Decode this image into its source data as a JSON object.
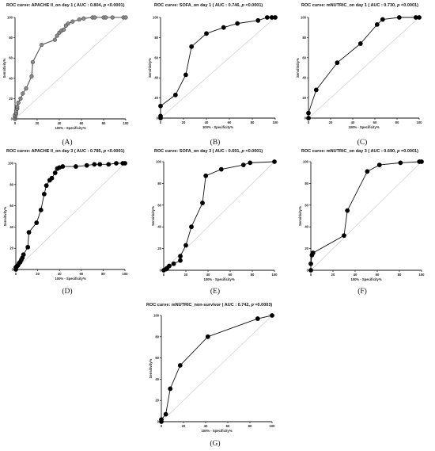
{
  "chart_data": [
    {
      "type": "line",
      "title": "ROC curve: APACHE II_on day 1 ( AUC : 0.804, ",
      "title_p": "p",
      "title_tail": " <0.0001)",
      "xlabel": "100% - Specificity%",
      "ylabel": "Sensitivity%",
      "xlim": [
        0,
        100
      ],
      "ylim": [
        0,
        100
      ],
      "xticks": [
        "0",
        "20",
        "40",
        "60",
        "80",
        "100"
      ],
      "yticks": [
        "0",
        "20",
        "40",
        "60",
        "80",
        "100"
      ],
      "panel_label": "(A)",
      "reference_line": true,
      "marker": "small-gray",
      "x": [
        0,
        0,
        0,
        0,
        0,
        1,
        1,
        1,
        2,
        2,
        3,
        5,
        7,
        10,
        15,
        16,
        24,
        36,
        38,
        40,
        42,
        44,
        46,
        48,
        52,
        58,
        62,
        70,
        72,
        80,
        82,
        88,
        98,
        100
      ],
      "y": [
        0,
        1,
        2,
        3,
        4,
        5,
        6,
        8,
        10,
        12,
        16,
        20,
        25,
        30,
        42,
        56,
        73,
        78,
        82,
        85,
        87,
        88,
        92,
        94,
        96,
        98,
        99,
        100,
        100,
        100,
        100,
        100,
        100,
        100
      ]
    },
    {
      "type": "line",
      "title": "ROC curve: SOFA_on day 1 ( AUC : 0.746, ",
      "title_p": "p",
      "title_tail": " <0.0001)",
      "xlabel": "100% - Specificity%",
      "ylabel": "Sensitivity%",
      "xlim": [
        0,
        100
      ],
      "ylim": [
        0,
        100
      ],
      "xticks": [
        "0",
        "20",
        "40",
        "60",
        "80",
        "100"
      ],
      "yticks": [
        "0",
        "20",
        "40",
        "60",
        "80",
        "100"
      ],
      "panel_label": "(B)",
      "reference_line": true,
      "marker": "large-black",
      "x": [
        0,
        0,
        0,
        13,
        22,
        27,
        40,
        55,
        67,
        85,
        93,
        97,
        100
      ],
      "y": [
        0,
        2,
        12,
        23,
        43,
        71,
        84,
        90,
        94,
        97,
        100,
        100,
        100
      ]
    },
    {
      "type": "line",
      "title": "ROC curve: mNUTRIC_on day 1 ( AUC : 0.730, ",
      "title_p": "p",
      "title_tail": " <0.0001)",
      "xlabel": "100% - Specificity%",
      "ylabel": "Sensitivity%",
      "xlim": [
        0,
        100
      ],
      "ylim": [
        0,
        100
      ],
      "xticks": [
        "0",
        "20",
        "40",
        "60",
        "80",
        "100"
      ],
      "yticks": [
        "0",
        "20",
        "40",
        "60",
        "80",
        "100"
      ],
      "panel_label": "(C)",
      "reference_line": true,
      "marker": "large-black",
      "x": [
        0,
        0,
        7,
        26,
        47,
        62,
        67,
        82,
        97,
        100
      ],
      "y": [
        0,
        5,
        28,
        55,
        74,
        93,
        98,
        100,
        100,
        100
      ]
    },
    {
      "type": "line",
      "title": "ROC curve: APACHE II_on day 3 ( AUC : 0.785, ",
      "title_p": "p",
      "title_tail": " <0.0001)",
      "xlabel": "100% - Specificity%",
      "ylabel": "Sensitivity%",
      "xlim": [
        0,
        100
      ],
      "ylim": [
        0,
        100
      ],
      "xticks": [
        "0",
        "20",
        "40",
        "60",
        "80",
        "100"
      ],
      "yticks": [
        "0",
        "20",
        "40",
        "60",
        "80",
        "100"
      ],
      "panel_label": "(D)",
      "reference_line": true,
      "marker": "large-black",
      "x": [
        0,
        0,
        1,
        2,
        3,
        4,
        5,
        6,
        7,
        11,
        12,
        19,
        23,
        26,
        28,
        31,
        33,
        36,
        38,
        40,
        43,
        55,
        65,
        72,
        77,
        85,
        92,
        98,
        100
      ],
      "y": [
        0,
        2,
        3,
        4,
        6,
        7,
        9,
        11,
        14,
        21,
        35,
        44,
        56,
        71,
        79,
        84,
        86,
        91,
        95,
        96,
        97,
        97,
        98,
        99,
        99,
        99,
        100,
        100,
        100
      ]
    },
    {
      "type": "line",
      "title": "ROC curve: SOFA_on day 3 ( AUC : 0.691, ",
      "title_p": "p",
      "title_tail": " <0.0001)",
      "xlabel": "100% - Specificity%",
      "ylabel": "Sensitivity%",
      "xlim": [
        0,
        100
      ],
      "ylim": [
        0,
        100
      ],
      "xticks": [
        "0",
        "20",
        "40",
        "60",
        "80",
        "100"
      ],
      "yticks": [
        "0",
        "20",
        "40",
        "60",
        "80",
        "100"
      ],
      "panel_label": "(E)",
      "reference_line": true,
      "marker": "large-black",
      "x": [
        0,
        2,
        3,
        5,
        9,
        15,
        15,
        20,
        25,
        35,
        38,
        52,
        72,
        78,
        100
      ],
      "y": [
        0,
        1,
        2,
        4,
        6,
        9,
        13,
        23,
        40,
        62,
        87,
        93,
        97,
        99,
        100
      ]
    },
    {
      "type": "line",
      "title": "ROC curve: mNUTRIC_on day 3 ( AUC : 0.690, ",
      "title_p": "p",
      "title_tail": " =0.0001)",
      "xlabel": "100% - Specificity%",
      "ylabel": "Sensitivity%",
      "xlim": [
        0,
        100
      ],
      "ylim": [
        0,
        100
      ],
      "xticks": [
        "0",
        "20",
        "40",
        "60",
        "80",
        "100"
      ],
      "yticks": [
        "0",
        "20",
        "40",
        "60",
        "80",
        "100"
      ],
      "panel_label": "(F)",
      "reference_line": true,
      "marker": "large-black",
      "x": [
        0,
        0,
        1,
        2,
        30,
        33,
        51,
        62,
        81,
        98,
        100
      ],
      "y": [
        0,
        6,
        14,
        16,
        32,
        55,
        91,
        97,
        99,
        100,
        100
      ],
      "y_top_tick": "100"
    },
    {
      "type": "line",
      "title": "ROC curve: mNUTRIC_non-survivor  ( AUC : 0.742, ",
      "title_p": "p",
      "title_tail": " =0.0003)",
      "xlabel": "100% - Specificity%",
      "ylabel": "Sensitivity%",
      "xlim": [
        0,
        100
      ],
      "ylim": [
        0,
        100
      ],
      "xticks": [
        "0",
        "20",
        "40",
        "60",
        "80",
        "100"
      ],
      "yticks": [
        "0",
        "20",
        "40",
        "60",
        "80",
        "100"
      ],
      "panel_label": "(G)",
      "reference_line": true,
      "marker": "large-black",
      "x": [
        0,
        0,
        4,
        8,
        17,
        42,
        87,
        100
      ],
      "y": [
        0,
        2,
        7,
        31,
        53,
        80,
        97,
        100
      ]
    }
  ]
}
